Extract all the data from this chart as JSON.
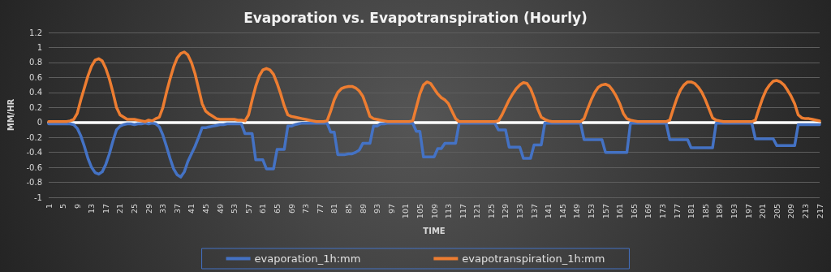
{
  "chart_data": {
    "type": "line",
    "title": "Evaporation vs. Evapotranspiration (Hourly)",
    "xlabel": "TIME",
    "ylabel": "MM/HR",
    "categories": [
      "1",
      null,
      null,
      null,
      "5",
      null,
      null,
      null,
      "9",
      null,
      null,
      null,
      "13",
      null,
      null,
      null,
      "17",
      null,
      null,
      null,
      "21",
      null,
      null,
      null,
      "25",
      null,
      null,
      null,
      "29",
      null,
      null,
      null,
      "33",
      null,
      null,
      null,
      "37",
      null,
      null,
      null,
      "41",
      null,
      null,
      null,
      "45",
      null,
      null,
      null,
      "49",
      null,
      null,
      null,
      "53",
      null,
      null,
      null,
      "57",
      null,
      null,
      null,
      "61",
      null,
      null,
      null,
      "65",
      null,
      null,
      null,
      "69",
      null,
      null,
      null,
      "73",
      null,
      null,
      null,
      "77",
      null,
      null,
      null,
      "81",
      null,
      null,
      null,
      "85",
      null,
      null,
      null,
      "89",
      null,
      null,
      null,
      "93",
      null,
      null,
      null,
      "97",
      null,
      null,
      null,
      "101",
      null,
      null,
      null,
      "105",
      null,
      null,
      null,
      "109",
      null,
      null,
      null,
      "113",
      null,
      null,
      null,
      "117",
      null,
      null,
      null,
      "121",
      null,
      null,
      null,
      "125",
      null,
      null,
      null,
      "129",
      null,
      null,
      null,
      "133",
      null,
      null,
      null,
      "137",
      null,
      null,
      null,
      "141",
      null,
      null,
      null,
      "145",
      null,
      null,
      null,
      "149",
      null,
      null,
      null,
      "153",
      null,
      null,
      null,
      "157",
      null,
      null,
      null,
      "161",
      null,
      null,
      null,
      "165",
      null,
      null,
      null,
      "169",
      null,
      null,
      null,
      "173",
      null,
      null,
      null,
      "177",
      null,
      null,
      null,
      "181",
      null,
      null,
      null,
      "185",
      null,
      null,
      null,
      "189",
      null,
      null,
      null,
      "193",
      null,
      null,
      null,
      "197",
      null,
      null,
      null,
      "201",
      null,
      null,
      null,
      "205",
      null,
      null,
      null,
      "209",
      null,
      null,
      null,
      "213",
      null,
      null,
      null,
      "217"
    ],
    "series": [
      {
        "name": "evaporation_1h:mm",
        "color": "#4472c4",
        "values": [
          -0.02,
          -0.02,
          -0.02,
          -0.02,
          -0.02,
          -0.02,
          -0.02,
          -0.03,
          -0.08,
          -0.18,
          -0.32,
          -0.48,
          -0.6,
          -0.67,
          -0.69,
          -0.66,
          -0.56,
          -0.42,
          -0.25,
          -0.1,
          -0.05,
          -0.03,
          -0.02,
          -0.02,
          -0.03,
          -0.02,
          -0.02,
          -0.01,
          -0.02,
          -0.01,
          -0.02,
          -0.06,
          -0.17,
          -0.32,
          -0.48,
          -0.62,
          -0.7,
          -0.73,
          -0.66,
          -0.52,
          -0.42,
          -0.32,
          -0.2,
          -0.07,
          -0.07,
          -0.06,
          -0.05,
          -0.04,
          -0.03,
          -0.03,
          -0.02,
          -0.02,
          -0.02,
          -0.02,
          -0.02,
          -0.15,
          -0.15,
          -0.15,
          -0.5,
          -0.5,
          -0.5,
          -0.62,
          -0.62,
          -0.62,
          -0.36,
          -0.36,
          -0.36,
          -0.05,
          -0.05,
          -0.03,
          -0.02,
          -0.01,
          -0.01,
          -0.01,
          -0.01,
          -0.01,
          -0.01,
          -0.01,
          -0.01,
          -0.13,
          -0.13,
          -0.43,
          -0.43,
          -0.43,
          -0.42,
          -0.42,
          -0.4,
          -0.37,
          -0.28,
          -0.28,
          -0.28,
          -0.05,
          -0.05,
          -0.02,
          -0.02,
          -0.01,
          -0.01,
          -0.01,
          -0.01,
          -0.01,
          -0.01,
          -0.01,
          -0.01,
          -0.12,
          -0.12,
          -0.46,
          -0.46,
          -0.46,
          -0.46,
          -0.35,
          -0.35,
          -0.28,
          -0.28,
          -0.28,
          -0.28,
          -0.01,
          -0.01,
          -0.01,
          -0.01,
          -0.01,
          -0.01,
          -0.01,
          -0.01,
          -0.01,
          -0.01,
          -0.01,
          -0.1,
          -0.1,
          -0.1,
          -0.33,
          -0.33,
          -0.33,
          -0.33,
          -0.48,
          -0.48,
          -0.48,
          -0.3,
          -0.3,
          -0.3,
          -0.01,
          -0.01,
          -0.01,
          -0.01,
          -0.01,
          -0.01,
          -0.01,
          -0.01,
          -0.01,
          -0.01,
          -0.01,
          -0.23,
          -0.23,
          -0.23,
          -0.23,
          -0.23,
          -0.23,
          -0.4,
          -0.4,
          -0.4,
          -0.4,
          -0.4,
          -0.4,
          -0.4,
          -0.01,
          -0.01,
          -0.01,
          -0.01,
          -0.01,
          -0.01,
          -0.01,
          -0.01,
          -0.01,
          -0.01,
          -0.01,
          -0.23,
          -0.23,
          -0.23,
          -0.23,
          -0.23,
          -0.23,
          -0.34,
          -0.34,
          -0.34,
          -0.34,
          -0.34,
          -0.34,
          -0.34,
          -0.01,
          -0.01,
          -0.01,
          -0.01,
          -0.01,
          -0.01,
          -0.01,
          -0.01,
          -0.01,
          -0.01,
          -0.01,
          -0.22,
          -0.22,
          -0.22,
          -0.22,
          -0.22,
          -0.22,
          -0.31,
          -0.31,
          -0.31,
          -0.31,
          -0.31,
          -0.31,
          -0.03,
          -0.03,
          -0.03,
          -0.03,
          -0.03,
          -0.03,
          -0.03
        ]
      },
      {
        "name": "evapotranspiration_1h:mm",
        "color": "#ed7d31",
        "values": [
          0.01,
          0.01,
          0.01,
          0.01,
          0.01,
          0.01,
          0.02,
          0.04,
          0.12,
          0.3,
          0.46,
          0.62,
          0.75,
          0.83,
          0.85,
          0.82,
          0.72,
          0.58,
          0.4,
          0.2,
          0.1,
          0.07,
          0.04,
          0.04,
          0.04,
          0.03,
          0.02,
          0.01,
          0.03,
          0.02,
          0.05,
          0.07,
          0.2,
          0.4,
          0.58,
          0.74,
          0.86,
          0.92,
          0.94,
          0.9,
          0.8,
          0.65,
          0.45,
          0.25,
          0.15,
          0.11,
          0.08,
          0.05,
          0.04,
          0.04,
          0.04,
          0.04,
          0.04,
          0.03,
          0.03,
          0.02,
          0.1,
          0.3,
          0.48,
          0.62,
          0.7,
          0.72,
          0.7,
          0.64,
          0.52,
          0.38,
          0.22,
          0.1,
          0.08,
          0.07,
          0.06,
          0.05,
          0.04,
          0.03,
          0.02,
          0.01,
          0.01,
          0.01,
          0.02,
          0.15,
          0.3,
          0.4,
          0.45,
          0.47,
          0.48,
          0.48,
          0.46,
          0.42,
          0.35,
          0.22,
          0.08,
          0.05,
          0.04,
          0.03,
          0.02,
          0.01,
          0.01,
          0.01,
          0.01,
          0.01,
          0.01,
          0.01,
          0.02,
          0.2,
          0.38,
          0.5,
          0.54,
          0.52,
          0.45,
          0.38,
          0.33,
          0.3,
          0.25,
          0.15,
          0.05,
          0.01,
          0.01,
          0.01,
          0.01,
          0.01,
          0.01,
          0.01,
          0.01,
          0.01,
          0.01,
          0.01,
          0.02,
          0.1,
          0.2,
          0.3,
          0.38,
          0.45,
          0.5,
          0.53,
          0.52,
          0.45,
          0.33,
          0.18,
          0.07,
          0.04,
          0.02,
          0.01,
          0.01,
          0.01,
          0.01,
          0.01,
          0.01,
          0.01,
          0.01,
          0.01,
          0.05,
          0.18,
          0.3,
          0.4,
          0.47,
          0.5,
          0.51,
          0.49,
          0.43,
          0.35,
          0.25,
          0.12,
          0.05,
          0.03,
          0.02,
          0.01,
          0.01,
          0.01,
          0.01,
          0.01,
          0.01,
          0.01,
          0.01,
          0.01,
          0.03,
          0.18,
          0.32,
          0.43,
          0.5,
          0.54,
          0.54,
          0.52,
          0.47,
          0.4,
          0.3,
          0.18,
          0.06,
          0.03,
          0.02,
          0.01,
          0.01,
          0.01,
          0.01,
          0.01,
          0.01,
          0.01,
          0.01,
          0.01,
          0.03,
          0.18,
          0.32,
          0.43,
          0.5,
          0.55,
          0.56,
          0.54,
          0.5,
          0.43,
          0.35,
          0.25,
          0.1,
          0.06,
          0.05,
          0.05,
          0.04,
          0.03,
          0.02
        ]
      }
    ],
    "ylim": [
      -1,
      1.2
    ],
    "yticks": [
      -1,
      -0.8,
      -0.6,
      -0.4,
      -0.2,
      0,
      0.2,
      0.4,
      0.6,
      0.8,
      1,
      1.2
    ],
    "grid": "y",
    "legend": "bottom",
    "marker": "none",
    "line_style": "solid"
  }
}
